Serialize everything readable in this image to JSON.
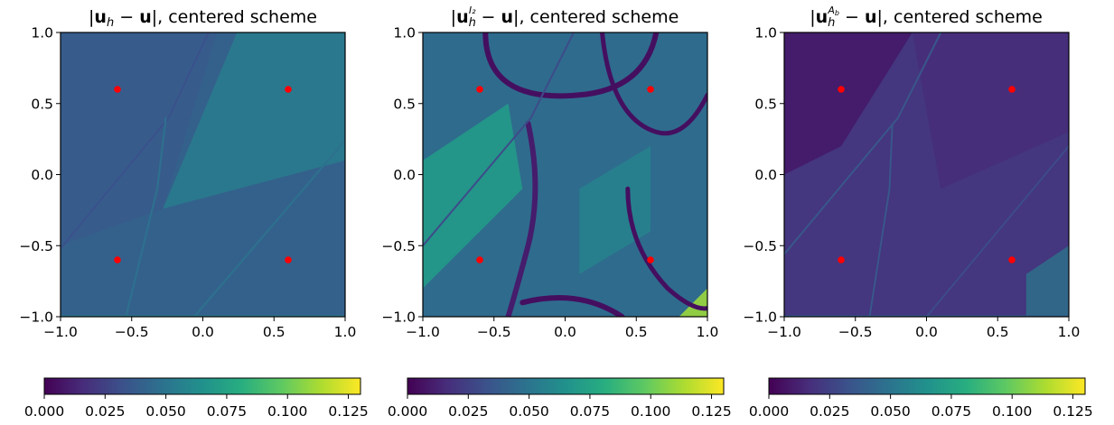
{
  "chart_data": [
    {
      "type": "heatmap",
      "title_prefix": "|",
      "title_symbol": "u",
      "title_sub": "h",
      "title_sup": "",
      "title_mid": " − ",
      "title_symbol2": "u",
      "title_suffix": "|, centered scheme",
      "xlim": [
        -1.0,
        1.0
      ],
      "ylim": [
        -1.0,
        1.0
      ],
      "x_ticks": [
        "−1.0",
        "−0.5",
        "0.0",
        "0.5",
        "1.0"
      ],
      "y_ticks": [
        "−1.0",
        "−0.5",
        "0.0",
        "0.5",
        "1.0"
      ],
      "colorbar": {
        "range": [
          0.0,
          0.13
        ],
        "ticks": [
          "0.000",
          "0.025",
          "0.050",
          "0.075",
          "0.100",
          "0.125"
        ],
        "colormap": "viridis"
      },
      "background_level": 0.04,
      "markers": {
        "color": "#ff0000",
        "points": [
          [
            -0.6,
            0.6
          ],
          [
            0.6,
            0.6
          ],
          [
            -0.6,
            -0.6
          ],
          [
            0.6,
            -0.6
          ]
        ]
      }
    },
    {
      "type": "heatmap",
      "title_prefix": "|",
      "title_symbol": "u",
      "title_sub": "h",
      "title_sup": "I₂",
      "title_mid": " − ",
      "title_symbol2": "u",
      "title_suffix": "|, centered scheme",
      "xlim": [
        -1.0,
        1.0
      ],
      "ylim": [
        -1.0,
        1.0
      ],
      "x_ticks": [
        "−1.0",
        "−0.5",
        "0.0",
        "0.5",
        "1.0"
      ],
      "y_ticks": [
        "−1.0",
        "−0.5",
        "0.0",
        "0.5",
        "1.0"
      ],
      "colorbar": {
        "range": [
          0.0,
          0.13
        ],
        "ticks": [
          "0.000",
          "0.025",
          "0.050",
          "0.075",
          "0.100",
          "0.125"
        ],
        "colormap": "viridis"
      },
      "background_level": 0.045,
      "markers": {
        "color": "#ff0000",
        "points": [
          [
            -0.6,
            0.6
          ],
          [
            0.6,
            0.6
          ],
          [
            -0.6,
            -0.6
          ],
          [
            0.6,
            -0.6
          ]
        ]
      }
    },
    {
      "type": "heatmap",
      "title_prefix": "|",
      "title_symbol": "u",
      "title_sub": "h",
      "title_sup": "A",
      "title_sup_sub": "b",
      "title_mid": " − ",
      "title_symbol2": "u",
      "title_suffix": "|, centered scheme",
      "xlim": [
        -1.0,
        1.0
      ],
      "ylim": [
        -1.0,
        1.0
      ],
      "x_ticks": [
        "−1.0",
        "−0.5",
        "0.0",
        "0.5",
        "1.0"
      ],
      "y_ticks": [
        "−1.0",
        "−0.5",
        "0.0",
        "0.5",
        "1.0"
      ],
      "colorbar": {
        "range": [
          0.0,
          0.13
        ],
        "ticks": [
          "0.000",
          "0.025",
          "0.050",
          "0.075",
          "0.100",
          "0.125"
        ],
        "colormap": "viridis"
      },
      "background_level": 0.02,
      "markers": {
        "color": "#ff0000",
        "points": [
          [
            -0.6,
            0.6
          ],
          [
            0.6,
            0.6
          ],
          [
            -0.6,
            -0.6
          ],
          [
            0.6,
            -0.6
          ]
        ]
      }
    }
  ]
}
